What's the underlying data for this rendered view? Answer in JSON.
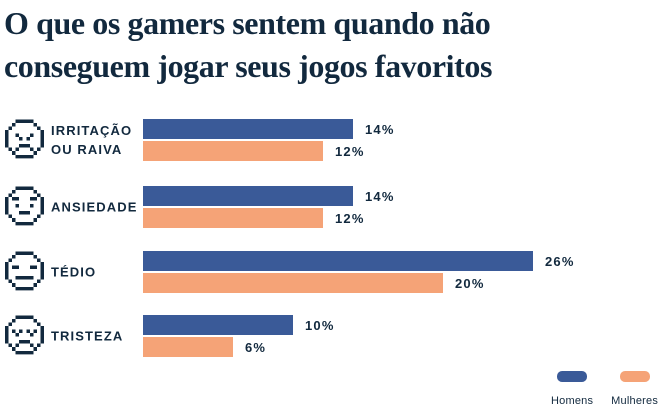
{
  "title": "O que os gamers sentem quando não conseguem jogar seus jogos favoritos",
  "colors": {
    "background": "#ffffff",
    "text": "#12293e",
    "men": "#3a5a98",
    "women": "#f5a377"
  },
  "chart_data": {
    "type": "bar",
    "orientation": "horizontal",
    "title": "O que os gamers sentem quando não conseguem jogar seus jogos favoritos",
    "categories": [
      "IRRITAÇÃO OU RAIVA",
      "ANSIEDADE",
      "TÉDIO",
      "TRISTEZA"
    ],
    "category_label_lines": [
      [
        "IRRITAÇÃO",
        "OU RAIVA"
      ],
      [
        "ANSIEDADE"
      ],
      [
        "TÉDIO"
      ],
      [
        "TRISTEZA"
      ]
    ],
    "category_icons": [
      "angry-face-icon",
      "worried-face-icon",
      "neutral-face-icon",
      "sad-face-icon"
    ],
    "series": [
      {
        "name": "Homens",
        "color": "#3a5a98",
        "values": [
          14,
          14,
          26,
          10
        ]
      },
      {
        "name": "Mulheres",
        "color": "#f5a377",
        "values": [
          12,
          12,
          20,
          6
        ]
      }
    ],
    "value_suffix": "%",
    "xlim": [
      0,
      30
    ],
    "grid": false,
    "legend_position": "bottom-right"
  },
  "legend": {
    "items": [
      {
        "label": "Homens",
        "color": "#3a5a98"
      },
      {
        "label": "Mulheres",
        "color": "#f5a377"
      }
    ]
  }
}
